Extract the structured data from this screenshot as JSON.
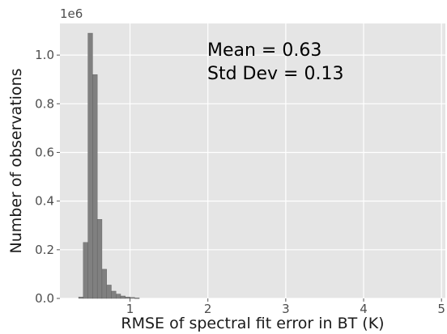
{
  "chart_data": {
    "type": "bar",
    "xlabel": "RMSE of spectral fit error in BT (K)",
    "ylabel": "Number of observations",
    "y_offset_label": "1e6",
    "xlim": [
      0.1,
      5.05
    ],
    "ylim": [
      0,
      1.13
    ],
    "x_ticks": [
      1,
      2,
      3,
      4,
      5
    ],
    "y_ticks": [
      "0.0",
      "0.2",
      "0.4",
      "0.6",
      "0.8",
      "1.0"
    ],
    "y_tick_values": [
      0.0,
      0.2,
      0.4,
      0.6,
      0.8,
      1.0
    ],
    "grid": true,
    "background": "#e5e5e5",
    "bar_color": "#808080",
    "bar_edge_color": "#5a5a5a",
    "bin_width": 0.06,
    "bins": [
      {
        "x0": 0.34,
        "value": 0.006
      },
      {
        "x0": 0.4,
        "value": 0.23
      },
      {
        "x0": 0.46,
        "value": 1.09
      },
      {
        "x0": 0.52,
        "value": 0.92
      },
      {
        "x0": 0.58,
        "value": 0.325
      },
      {
        "x0": 0.64,
        "value": 0.12
      },
      {
        "x0": 0.7,
        "value": 0.055
      },
      {
        "x0": 0.76,
        "value": 0.03
      },
      {
        "x0": 0.82,
        "value": 0.018
      },
      {
        "x0": 0.88,
        "value": 0.01
      },
      {
        "x0": 0.94,
        "value": 0.006
      },
      {
        "x0": 1.0,
        "value": 0.004
      },
      {
        "x0": 1.06,
        "value": 0.002
      }
    ],
    "annotations": [
      "Mean = 0.63",
      "Std Dev = 0.13"
    ]
  }
}
